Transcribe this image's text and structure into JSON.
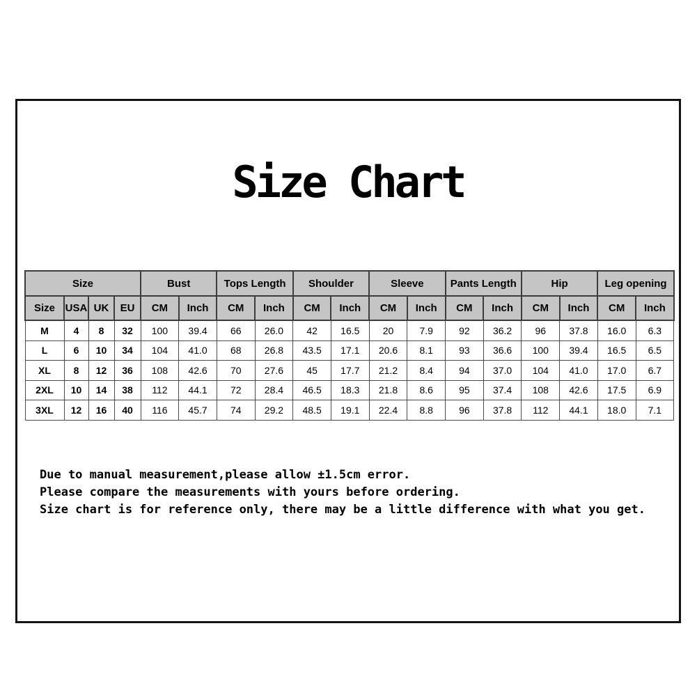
{
  "chart_data": {
    "type": "table",
    "title": "Size Chart",
    "header_groups": [
      {
        "label": "Size",
        "span": 4
      },
      {
        "label": "Bust",
        "span": 2
      },
      {
        "label": "Tops Length",
        "span": 2
      },
      {
        "label": "Shoulder",
        "span": 2
      },
      {
        "label": "Sleeve",
        "span": 2
      },
      {
        "label": "Pants Length",
        "span": 2
      },
      {
        "label": "Hip",
        "span": 2
      },
      {
        "label": "Leg opening",
        "span": 2
      }
    ],
    "sub_headers": [
      "Size",
      "USA",
      "UK",
      "EU",
      "CM",
      "Inch",
      "CM",
      "Inch",
      "CM",
      "Inch",
      "CM",
      "Inch",
      "CM",
      "Inch",
      "CM",
      "Inch",
      "CM",
      "Inch"
    ],
    "rows": [
      [
        "M",
        "4",
        "8",
        "32",
        "100",
        "39.4",
        "66",
        "26.0",
        "42",
        "16.5",
        "20",
        "7.9",
        "92",
        "36.2",
        "96",
        "37.8",
        "16.0",
        "6.3"
      ],
      [
        "L",
        "6",
        "10",
        "34",
        "104",
        "41.0",
        "68",
        "26.8",
        "43.5",
        "17.1",
        "20.6",
        "8.1",
        "93",
        "36.6",
        "100",
        "39.4",
        "16.5",
        "6.5"
      ],
      [
        "XL",
        "8",
        "12",
        "36",
        "108",
        "42.6",
        "70",
        "27.6",
        "45",
        "17.7",
        "21.2",
        "8.4",
        "94",
        "37.0",
        "104",
        "41.0",
        "17.0",
        "6.7"
      ],
      [
        "2XL",
        "10",
        "14",
        "38",
        "112",
        "44.1",
        "72",
        "28.4",
        "46.5",
        "18.3",
        "21.8",
        "8.6",
        "95",
        "37.4",
        "108",
        "42.6",
        "17.5",
        "6.9"
      ],
      [
        "3XL",
        "12",
        "16",
        "40",
        "116",
        "45.7",
        "74",
        "29.2",
        "48.5",
        "19.1",
        "22.4",
        "8.8",
        "96",
        "37.8",
        "112",
        "44.1",
        "18.0",
        "7.1"
      ]
    ],
    "bold_columns": 4
  },
  "notes": {
    "lines": [
      "Due to manual measurement,please allow ±1.5cm error.",
      "Please compare the measurements with yours before ordering.",
      "Size chart is for reference only, there may be a little difference with what you get."
    ]
  },
  "colors": {
    "header_bg": "#c5c5c5",
    "table_border": "#3c3c3c",
    "frame_border": "#141414",
    "background": "#ffffff"
  }
}
